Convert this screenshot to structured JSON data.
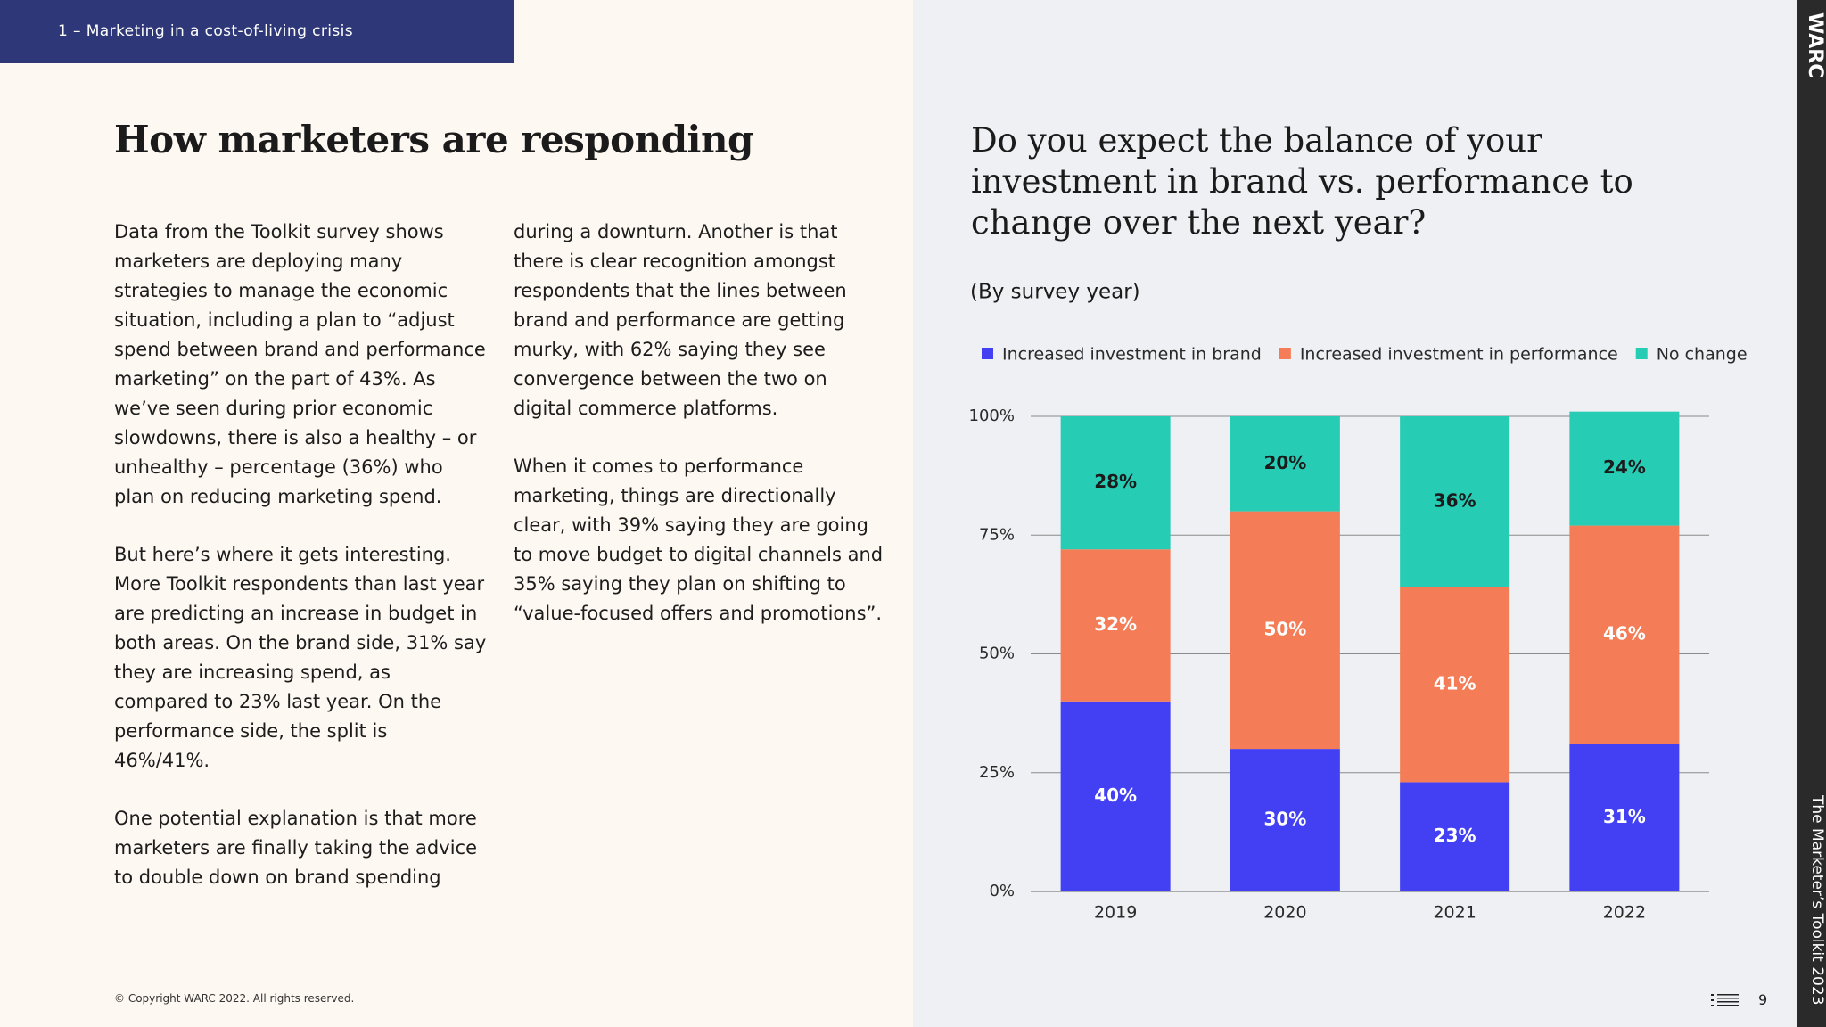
{
  "header": {
    "section": "1 – Marketing in a cost-of-living crisis"
  },
  "left": {
    "title": "How marketers are responding",
    "columns": [
      [
        "Data from the Toolkit survey shows marketers are deploying many strategies to manage the economic situation, including a plan to “adjust spend between brand and performance marketing” on the part of 43%. As we’ve seen during prior economic slowdowns, there is also a healthy – or unhealthy – percentage (36%) who plan on reducing marketing spend.",
        "But here’s where it gets interesting. More Toolkit respondents than last year are predicting an increase in budget in both areas. On the brand side, 31% say they are increasing spend, as compared to 23% last year. On the performance side, the split is 46%/41%.",
        "One potential explanation is that more marketers are finally taking the advice to double down on brand spending"
      ],
      [
        "during a downturn. Another is that there is clear recognition amongst respondents that the lines between brand and performance are getting murky, with 62% saying they see convergence between the two on digital commerce platforms.",
        "When it comes to performance marketing, things are directionally clear, with 39% saying they are going to move budget to digital channels and 35% saying they plan on shifting to “value-focused offers and promotions”."
      ]
    ],
    "copyright": "© Copyright WARC 2022. All rights reserved."
  },
  "sidebar": {
    "brand": "WARC",
    "publication": "The Marketer’s Toolkit 2023",
    "page": "9"
  },
  "chart_data": {
    "type": "stacked-bar",
    "title": "Do you expect the balance of your investment in brand vs. performance to change over the next year?",
    "subtitle": "(By survey year)",
    "categories": [
      "2019",
      "2020",
      "2021",
      "2022"
    ],
    "series": [
      {
        "name": "Increased investment in brand",
        "color": "#4240f2",
        "label_color": "#ffffff",
        "values": [
          40,
          30,
          23,
          31
        ],
        "value_labels": [
          "40%",
          "30%",
          "23%",
          "31%"
        ]
      },
      {
        "name": "Increased investment in performance",
        "color": "#f47d57",
        "label_color": "#ffffff",
        "values": [
          32,
          50,
          41,
          46
        ],
        "value_labels": [
          "32%",
          "50%",
          "41%",
          "46%"
        ]
      },
      {
        "name": "No change",
        "color": "#27ccb4",
        "label_color": "#1b1b1b",
        "values": [
          28,
          20,
          36,
          24
        ],
        "value_labels": [
          "28%",
          "20%",
          "36%",
          "24%"
        ]
      }
    ],
    "ylim": [
      0,
      100
    ],
    "yticks": [
      {
        "value": 0,
        "label": "0%"
      },
      {
        "value": 25,
        "label": "25%"
      },
      {
        "value": 50,
        "label": "50%"
      },
      {
        "value": 75,
        "label": "75%"
      },
      {
        "value": 100,
        "label": "100%"
      }
    ],
    "grid": true
  }
}
